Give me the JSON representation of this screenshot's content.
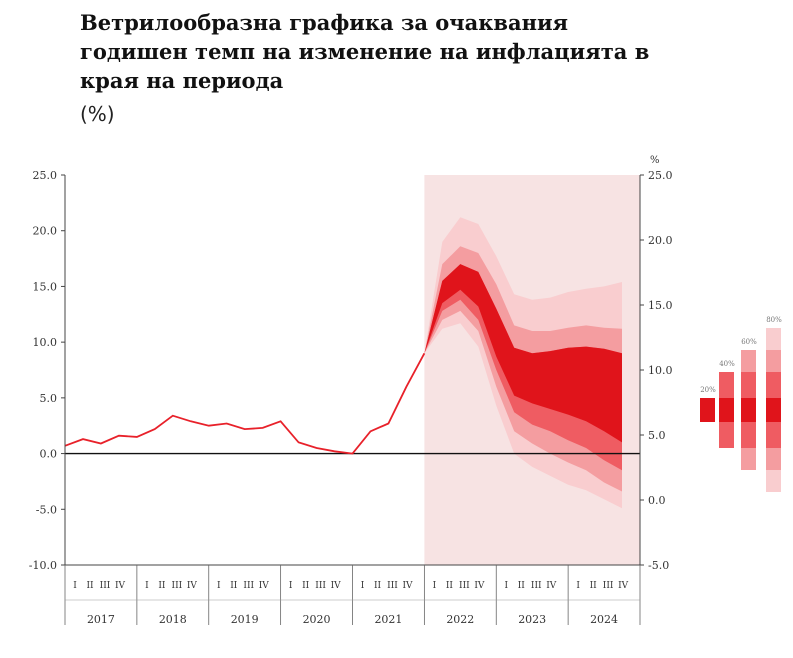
{
  "title": "Ветрилообразна графика за очаквания годишен темп на изменение на инфлацията в края на периода",
  "subtitle": "(%)",
  "chart_data": {
    "type": "line",
    "right_axis_unit": "%",
    "y_left": {
      "min": -10,
      "max": 25,
      "ticks": [
        "25.0",
        "20.0",
        "15.0",
        "10.0",
        "5.0",
        "0.0",
        "-5.0",
        "-10.0"
      ]
    },
    "y_right": {
      "ticks": [
        "25.0",
        "20.0",
        "15.0",
        "10.0",
        "5.0",
        "0.0",
        "-5.0"
      ]
    },
    "quarter_labels": [
      "I",
      "II",
      "III",
      "IV"
    ],
    "years": [
      "2017",
      "2018",
      "2019",
      "2020",
      "2021",
      "2022",
      "2023",
      "2024"
    ],
    "x_start": 2017.0,
    "forecast_start": 2022.0,
    "colors": {
      "line": "#e8212a",
      "band_core": "#e0141b",
      "band_1": "#ef5c62",
      "band_2": "#f49da0",
      "band_3": "#f9cdcf",
      "forecast_bg": "#f7e3e3"
    },
    "history": {
      "x": [
        2017.0,
        2017.25,
        2017.5,
        2017.75,
        2018.0,
        2018.25,
        2018.5,
        2018.75,
        2019.0,
        2019.25,
        2019.5,
        2019.75,
        2020.0,
        2020.25,
        2020.5,
        2020.75,
        2021.0,
        2021.25,
        2021.5,
        2021.75,
        2022.0
      ],
      "y": [
        0.7,
        1.3,
        0.9,
        1.6,
        1.5,
        2.2,
        3.4,
        2.9,
        2.5,
        2.7,
        2.2,
        2.3,
        2.9,
        1.0,
        0.5,
        0.2,
        0.0,
        2.0,
        2.7,
        6.0,
        9.0
      ]
    },
    "fan": {
      "x": [
        2022.0,
        2022.25,
        2022.5,
        2022.75,
        2023.0,
        2023.25,
        2023.5,
        2023.75,
        2024.0,
        2024.25,
        2024.5,
        2024.75
      ],
      "bands": [
        {
          "lower": [
            9.0,
            13.5,
            14.7,
            13.2,
            8.7,
            5.2,
            4.5,
            4.0,
            3.5,
            2.9,
            2.0,
            1.0
          ],
          "upper": [
            9.0,
            15.5,
            17.0,
            16.3,
            13.0,
            9.5,
            9.0,
            9.2,
            9.5,
            9.6,
            9.4,
            9.0
          ]
        },
        {
          "lower": [
            9.0,
            12.8,
            13.8,
            12.0,
            7.5,
            3.7,
            2.6,
            2.0,
            1.2,
            0.5,
            -0.6,
            -1.5
          ]
        },
        {
          "lower": [
            9.0,
            12.0,
            12.8,
            11.0,
            6.0,
            2.0,
            0.9,
            0.0,
            -0.8,
            -1.5,
            -2.6,
            -3.4
          ],
          "upper": [
            9.0,
            17.0,
            18.6,
            18.0,
            15.2,
            11.5,
            11.0,
            11.0,
            11.3,
            11.5,
            11.3,
            11.2
          ]
        },
        {
          "lower": [
            9.0,
            11.2,
            11.7,
            9.6,
            4.3,
            0.0,
            -1.2,
            -2.0,
            -2.8,
            -3.3,
            -4.1,
            -4.9
          ],
          "upper": [
            9.0,
            19.0,
            21.2,
            20.6,
            17.7,
            14.3,
            13.8,
            14.0,
            14.5,
            14.8,
            15.0,
            15.4
          ]
        }
      ]
    },
    "legend": {
      "position": "right",
      "labels": [
        "20%",
        "40%",
        "60%",
        "80%"
      ]
    }
  }
}
